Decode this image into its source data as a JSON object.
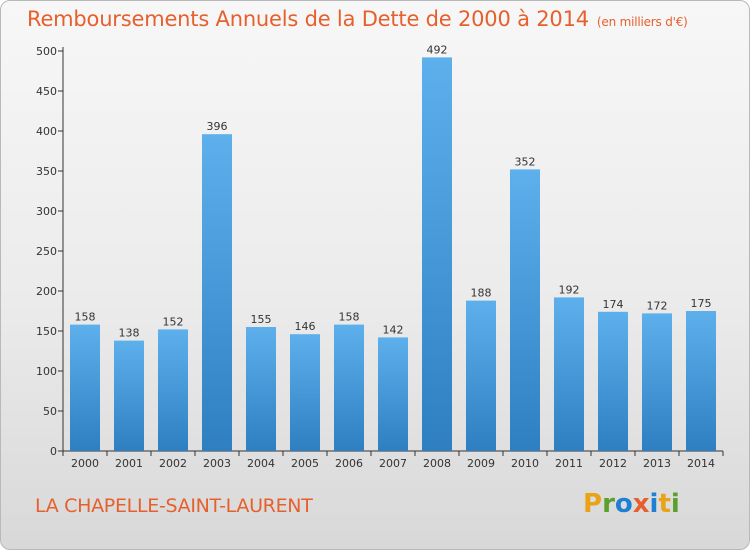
{
  "header": {
    "title": "Remboursements Annuels de la Dette de 2000 à 2014",
    "subtitle": "(en milliers d'€)"
  },
  "footer": {
    "place": "LA CHAPELLE-SAINT-LAURENT",
    "logo_letters": [
      "P",
      "r",
      "o",
      "x",
      "i",
      "t",
      "i"
    ],
    "logo_colors": [
      "#e8a317",
      "#5aa02c",
      "#1f7fd1",
      "#e6602d",
      "#1f7fd1",
      "#e8a317",
      "#5aa02c"
    ]
  },
  "chart_data": {
    "type": "bar",
    "title": "Remboursements Annuels de la Dette de 2000 à 2014",
    "unit": "(en milliers d'€)",
    "categories": [
      "2000",
      "2001",
      "2002",
      "2003",
      "2004",
      "2005",
      "2006",
      "2007",
      "2008",
      "2009",
      "2010",
      "2011",
      "2012",
      "2013",
      "2014"
    ],
    "values": [
      158,
      138,
      152,
      396,
      155,
      146,
      158,
      142,
      492,
      188,
      352,
      192,
      174,
      172,
      175
    ],
    "yticks": [
      0,
      50,
      100,
      150,
      200,
      250,
      300,
      350,
      400,
      450,
      500
    ],
    "ylim": [
      0,
      500
    ],
    "grid": false,
    "colors": {
      "bar_top": "#5db0ec",
      "bar_bottom": "#2e7fc1",
      "axis": "#333333"
    }
  }
}
